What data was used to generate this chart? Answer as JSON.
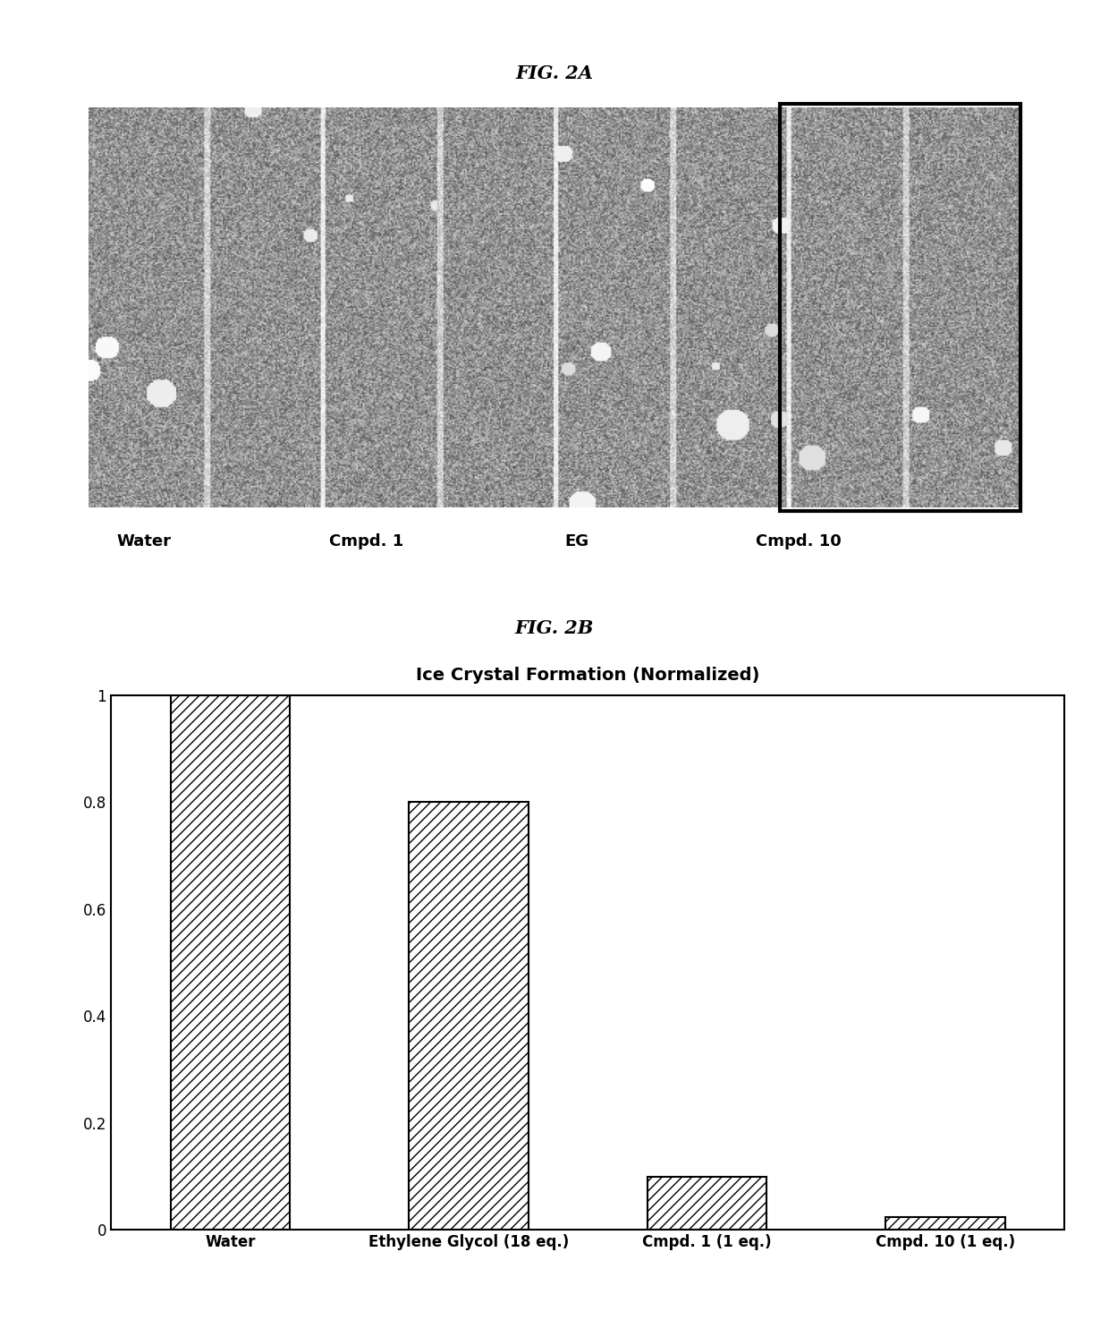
{
  "fig2a_title": "FIG. 2A",
  "fig2b_title": "FIG. 2B",
  "bar_title": "Ice Crystal Formation (Normalized)",
  "categories": [
    "Water",
    "Ethylene Glycol (18 eq.)",
    "Cmpd. 1 (1 eq.)",
    "Cmpd. 10 (1 eq.)"
  ],
  "values": [
    1.0,
    0.8,
    0.1,
    0.025
  ],
  "ylim": [
    0,
    1.0
  ],
  "yticks": [
    0,
    0.2,
    0.4,
    0.6,
    0.8,
    1
  ],
  "hatch_pattern": "///",
  "bar_facecolor": "#ffffff",
  "bar_edgecolor": "#000000",
  "bar_linewidth": 1.5,
  "background_color": "#ffffff",
  "fig2a_labels": [
    "Water",
    "Cmpd. 1",
    "EG",
    "Cmpd. 10"
  ],
  "title_fontsize": 15,
  "bar_title_fontsize": 14,
  "tick_fontsize": 12,
  "label_fontsize": 13,
  "fig_title_fontstyle": "italic",
  "fig_title_fontweight": "bold"
}
